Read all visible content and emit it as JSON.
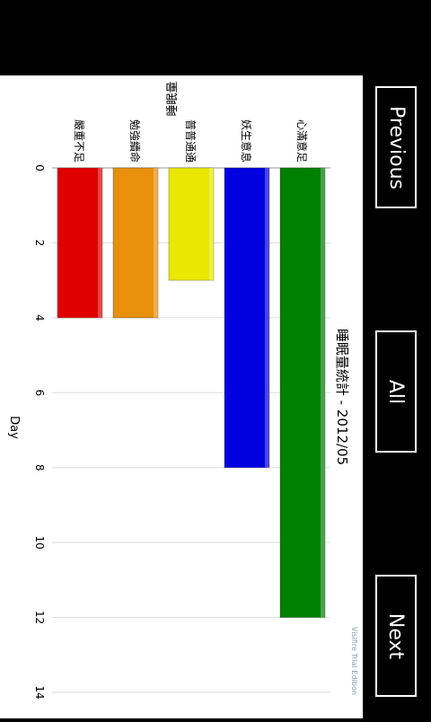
{
  "nav": {
    "previous_label": "Previous",
    "all_label": "All",
    "next_label": "Next"
  },
  "watermark": "Visifire Trial Edition",
  "colors": {
    "series": [
      "#008000",
      "#0000E0",
      "#E8E800",
      "#E8900C",
      "#E00000"
    ]
  },
  "chart_data": {
    "type": "bar",
    "orientation": "horizontal",
    "title": "睡眠量統計 - 2012/05",
    "xlabel": "睡眠量",
    "ylabel": "Day",
    "categories": [
      "心滿意足",
      "妖生意息",
      "普普通通",
      "勉強續命",
      "嚴重不足"
    ],
    "values": [
      12,
      8,
      3,
      4,
      4
    ],
    "ylim": [
      0,
      14
    ],
    "ticks": [
      0,
      2,
      4,
      6,
      8,
      10,
      12,
      14
    ],
    "grid": true
  }
}
